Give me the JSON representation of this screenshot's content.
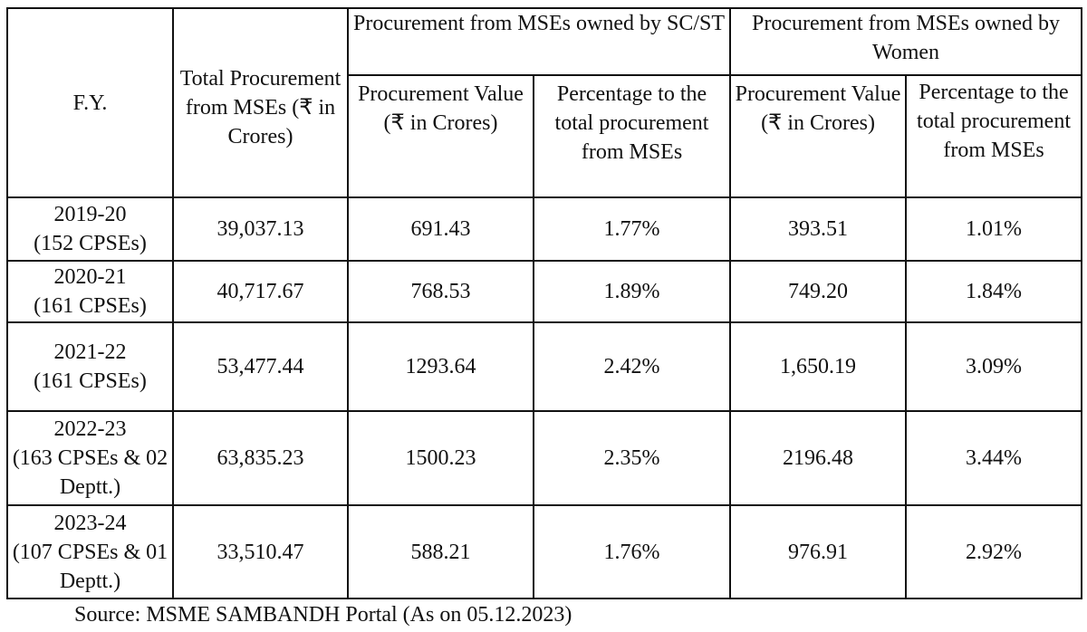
{
  "headers": {
    "fy": "F.Y.",
    "total": "Total Procurement from MSEs (₹ in Crores)",
    "scst_group": "Procurement from MSEs owned by SC/ST",
    "women_group": "Procurement from MSEs owned by Women",
    "value": "Procurement Value (₹ in Crores)",
    "pct": "Percentage to the total procurement from MSEs"
  },
  "rows": [
    {
      "fy": "2019-20",
      "note": "(152 CPSEs)",
      "total": "39,037.13",
      "scst_value": "691.43",
      "scst_pct": "1.77%",
      "women_value": "393.51",
      "women_pct": "1.01%"
    },
    {
      "fy": "2020-21",
      "note": "(161 CPSEs)",
      "total": "40,717.67",
      "scst_value": "768.53",
      "scst_pct": "1.89%",
      "women_value": "749.20",
      "women_pct": "1.84%"
    },
    {
      "fy": "2021-22",
      "note": "(161 CPSEs)",
      "total": "53,477.44",
      "scst_value": "1293.64",
      "scst_pct": "2.42%",
      "women_value": "1,650.19",
      "women_pct": "3.09%"
    },
    {
      "fy": "2022-23",
      "note": "(163 CPSEs & 02 Deptt.)",
      "total": "63,835.23",
      "scst_value": "1500.23",
      "scst_pct": "2.35%",
      "women_value": "2196.48",
      "women_pct": "3.44%"
    },
    {
      "fy": "2023-24",
      "note": "(107 CPSEs & 01 Deptt.)",
      "total": "33,510.47",
      "scst_value": "588.21",
      "scst_pct": "1.76%",
      "women_value": "976.91",
      "women_pct": "2.92%"
    }
  ],
  "source": "Source: MSME SAMBANDH Portal (As on 05.12.2023)"
}
